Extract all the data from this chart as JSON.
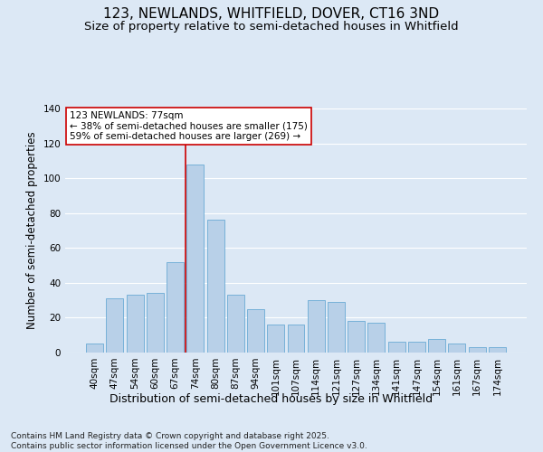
{
  "title": "123, NEWLANDS, WHITFIELD, DOVER, CT16 3ND",
  "subtitle": "Size of property relative to semi-detached houses in Whitfield",
  "xlabel": "Distribution of semi-detached houses by size in Whitfield",
  "ylabel": "Number of semi-detached properties",
  "categories": [
    "40sqm",
    "47sqm",
    "54sqm",
    "60sqm",
    "67sqm",
    "74sqm",
    "80sqm",
    "87sqm",
    "94sqm",
    "101sqm",
    "107sqm",
    "114sqm",
    "121sqm",
    "127sqm",
    "134sqm",
    "141sqm",
    "147sqm",
    "154sqm",
    "161sqm",
    "167sqm",
    "174sqm"
  ],
  "values": [
    5,
    31,
    33,
    34,
    52,
    108,
    76,
    33,
    25,
    16,
    16,
    30,
    29,
    18,
    17,
    6,
    6,
    8,
    5,
    3,
    3
  ],
  "bar_color": "#b8d0e8",
  "bar_edge_color": "#6aaad4",
  "background_color": "#dce8f5",
  "plot_bg_color": "#dce8f5",
  "vline_color": "#cc0000",
  "vline_position": 4.5,
  "annotation_text": "123 NEWLANDS: 77sqm\n← 38% of semi-detached houses are smaller (175)\n59% of semi-detached houses are larger (269) →",
  "annotation_box_facecolor": "#ffffff",
  "annotation_border_color": "#cc0000",
  "ylim": [
    0,
    140
  ],
  "yticks": [
    0,
    20,
    40,
    60,
    80,
    100,
    120,
    140
  ],
  "footer": "Contains HM Land Registry data © Crown copyright and database right 2025.\nContains public sector information licensed under the Open Government Licence v3.0.",
  "title_fontsize": 11,
  "subtitle_fontsize": 9.5,
  "xlabel_fontsize": 9,
  "ylabel_fontsize": 8.5,
  "tick_fontsize": 7.5,
  "annotation_fontsize": 7.5,
  "footer_fontsize": 6.5
}
